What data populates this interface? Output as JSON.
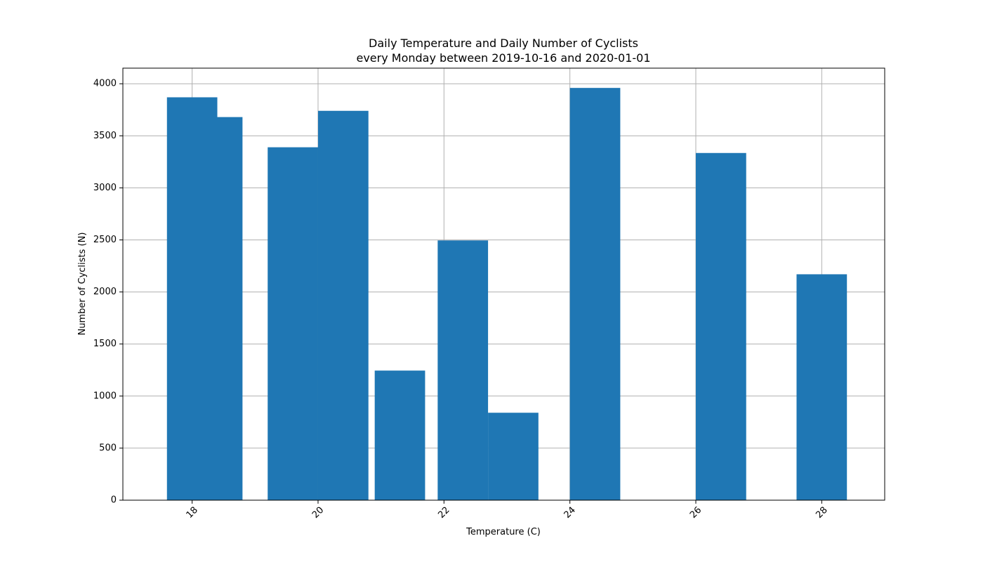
{
  "chart_data": {
    "type": "bar",
    "title": "Daily Temperature and Daily Number of Cyclists",
    "subtitle": "every Monday between 2019-10-16 and 2020-01-01",
    "xlabel": "Temperature (C)",
    "ylabel": "Number of Cyclists (N)",
    "xlim": [
      16.9,
      29.0
    ],
    "ylim": [
      0,
      4150
    ],
    "x_ticks": [
      18,
      20,
      22,
      24,
      26,
      28
    ],
    "y_ticks": [
      0,
      500,
      1000,
      1500,
      2000,
      2500,
      3000,
      3500,
      4000
    ],
    "grid": true,
    "bar_width": 0.8,
    "color": "#1f77b4",
    "x": [
      18.0,
      18.4,
      19.6,
      20.4,
      21.3,
      22.3,
      23.1,
      24.4,
      26.4,
      28.0
    ],
    "values": [
      3870,
      3680,
      3390,
      3740,
      1245,
      2495,
      840,
      3960,
      3335,
      2170
    ]
  }
}
